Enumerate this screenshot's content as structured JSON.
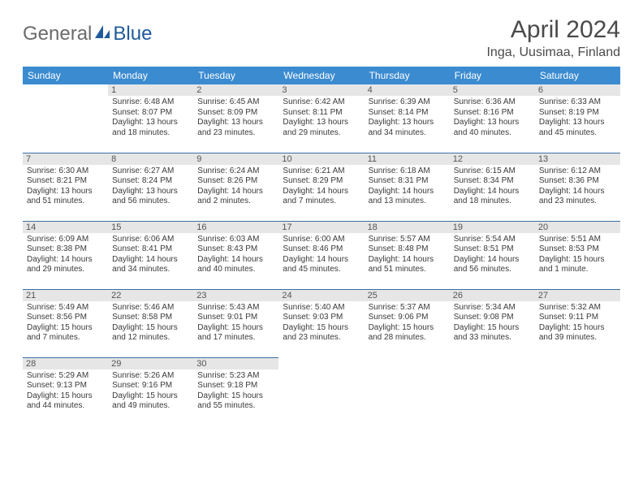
{
  "logo": {
    "text1": "General",
    "text2": "Blue"
  },
  "title": "April 2024",
  "location": "Inga, Uusimaa, Finland",
  "colors": {
    "header_bg": "#3b8bd0",
    "header_text": "#ffffff",
    "daybar_bg": "#e6e6e6",
    "daybar_text": "#555555",
    "row_border": "#3b6ea0",
    "logo_gray": "#6b6b6b",
    "logo_blue": "#1f5a9b"
  },
  "day_headers": [
    "Sunday",
    "Monday",
    "Tuesday",
    "Wednesday",
    "Thursday",
    "Friday",
    "Saturday"
  ],
  "weeks": [
    [
      null,
      {
        "d": "1",
        "sr": "Sunrise: 6:48 AM",
        "ss": "Sunset: 8:07 PM",
        "dl1": "Daylight: 13 hours",
        "dl2": "and 18 minutes."
      },
      {
        "d": "2",
        "sr": "Sunrise: 6:45 AM",
        "ss": "Sunset: 8:09 PM",
        "dl1": "Daylight: 13 hours",
        "dl2": "and 23 minutes."
      },
      {
        "d": "3",
        "sr": "Sunrise: 6:42 AM",
        "ss": "Sunset: 8:11 PM",
        "dl1": "Daylight: 13 hours",
        "dl2": "and 29 minutes."
      },
      {
        "d": "4",
        "sr": "Sunrise: 6:39 AM",
        "ss": "Sunset: 8:14 PM",
        "dl1": "Daylight: 13 hours",
        "dl2": "and 34 minutes."
      },
      {
        "d": "5",
        "sr": "Sunrise: 6:36 AM",
        "ss": "Sunset: 8:16 PM",
        "dl1": "Daylight: 13 hours",
        "dl2": "and 40 minutes."
      },
      {
        "d": "6",
        "sr": "Sunrise: 6:33 AM",
        "ss": "Sunset: 8:19 PM",
        "dl1": "Daylight: 13 hours",
        "dl2": "and 45 minutes."
      }
    ],
    [
      {
        "d": "7",
        "sr": "Sunrise: 6:30 AM",
        "ss": "Sunset: 8:21 PM",
        "dl1": "Daylight: 13 hours",
        "dl2": "and 51 minutes."
      },
      {
        "d": "8",
        "sr": "Sunrise: 6:27 AM",
        "ss": "Sunset: 8:24 PM",
        "dl1": "Daylight: 13 hours",
        "dl2": "and 56 minutes."
      },
      {
        "d": "9",
        "sr": "Sunrise: 6:24 AM",
        "ss": "Sunset: 8:26 PM",
        "dl1": "Daylight: 14 hours",
        "dl2": "and 2 minutes."
      },
      {
        "d": "10",
        "sr": "Sunrise: 6:21 AM",
        "ss": "Sunset: 8:29 PM",
        "dl1": "Daylight: 14 hours",
        "dl2": "and 7 minutes."
      },
      {
        "d": "11",
        "sr": "Sunrise: 6:18 AM",
        "ss": "Sunset: 8:31 PM",
        "dl1": "Daylight: 14 hours",
        "dl2": "and 13 minutes."
      },
      {
        "d": "12",
        "sr": "Sunrise: 6:15 AM",
        "ss": "Sunset: 8:34 PM",
        "dl1": "Daylight: 14 hours",
        "dl2": "and 18 minutes."
      },
      {
        "d": "13",
        "sr": "Sunrise: 6:12 AM",
        "ss": "Sunset: 8:36 PM",
        "dl1": "Daylight: 14 hours",
        "dl2": "and 23 minutes."
      }
    ],
    [
      {
        "d": "14",
        "sr": "Sunrise: 6:09 AM",
        "ss": "Sunset: 8:38 PM",
        "dl1": "Daylight: 14 hours",
        "dl2": "and 29 minutes."
      },
      {
        "d": "15",
        "sr": "Sunrise: 6:06 AM",
        "ss": "Sunset: 8:41 PM",
        "dl1": "Daylight: 14 hours",
        "dl2": "and 34 minutes."
      },
      {
        "d": "16",
        "sr": "Sunrise: 6:03 AM",
        "ss": "Sunset: 8:43 PM",
        "dl1": "Daylight: 14 hours",
        "dl2": "and 40 minutes."
      },
      {
        "d": "17",
        "sr": "Sunrise: 6:00 AM",
        "ss": "Sunset: 8:46 PM",
        "dl1": "Daylight: 14 hours",
        "dl2": "and 45 minutes."
      },
      {
        "d": "18",
        "sr": "Sunrise: 5:57 AM",
        "ss": "Sunset: 8:48 PM",
        "dl1": "Daylight: 14 hours",
        "dl2": "and 51 minutes."
      },
      {
        "d": "19",
        "sr": "Sunrise: 5:54 AM",
        "ss": "Sunset: 8:51 PM",
        "dl1": "Daylight: 14 hours",
        "dl2": "and 56 minutes."
      },
      {
        "d": "20",
        "sr": "Sunrise: 5:51 AM",
        "ss": "Sunset: 8:53 PM",
        "dl1": "Daylight: 15 hours",
        "dl2": "and 1 minute."
      }
    ],
    [
      {
        "d": "21",
        "sr": "Sunrise: 5:49 AM",
        "ss": "Sunset: 8:56 PM",
        "dl1": "Daylight: 15 hours",
        "dl2": "and 7 minutes."
      },
      {
        "d": "22",
        "sr": "Sunrise: 5:46 AM",
        "ss": "Sunset: 8:58 PM",
        "dl1": "Daylight: 15 hours",
        "dl2": "and 12 minutes."
      },
      {
        "d": "23",
        "sr": "Sunrise: 5:43 AM",
        "ss": "Sunset: 9:01 PM",
        "dl1": "Daylight: 15 hours",
        "dl2": "and 17 minutes."
      },
      {
        "d": "24",
        "sr": "Sunrise: 5:40 AM",
        "ss": "Sunset: 9:03 PM",
        "dl1": "Daylight: 15 hours",
        "dl2": "and 23 minutes."
      },
      {
        "d": "25",
        "sr": "Sunrise: 5:37 AM",
        "ss": "Sunset: 9:06 PM",
        "dl1": "Daylight: 15 hours",
        "dl2": "and 28 minutes."
      },
      {
        "d": "26",
        "sr": "Sunrise: 5:34 AM",
        "ss": "Sunset: 9:08 PM",
        "dl1": "Daylight: 15 hours",
        "dl2": "and 33 minutes."
      },
      {
        "d": "27",
        "sr": "Sunrise: 5:32 AM",
        "ss": "Sunset: 9:11 PM",
        "dl1": "Daylight: 15 hours",
        "dl2": "and 39 minutes."
      }
    ],
    [
      {
        "d": "28",
        "sr": "Sunrise: 5:29 AM",
        "ss": "Sunset: 9:13 PM",
        "dl1": "Daylight: 15 hours",
        "dl2": "and 44 minutes."
      },
      {
        "d": "29",
        "sr": "Sunrise: 5:26 AM",
        "ss": "Sunset: 9:16 PM",
        "dl1": "Daylight: 15 hours",
        "dl2": "and 49 minutes."
      },
      {
        "d": "30",
        "sr": "Sunrise: 5:23 AM",
        "ss": "Sunset: 9:18 PM",
        "dl1": "Daylight: 15 hours",
        "dl2": "and 55 minutes."
      },
      null,
      null,
      null,
      null
    ]
  ]
}
